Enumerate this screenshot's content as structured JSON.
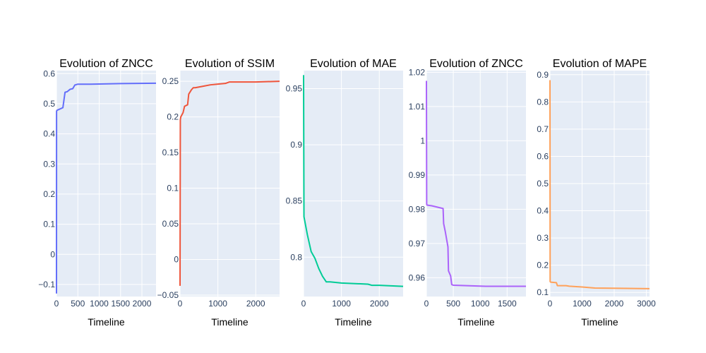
{
  "chart_data": [
    {
      "type": "line",
      "title": "Evolution of ZNCC",
      "xlabel": "Timeline",
      "ylabel": "",
      "xlim": [
        0,
        2330
      ],
      "ylim": [
        -0.14,
        0.61
      ],
      "xticks": [
        0,
        500,
        1000,
        1500,
        2000
      ],
      "xtick_labels": [
        "0",
        "500",
        "1000",
        "1500",
        "2000"
      ],
      "yticks": [
        -0.1,
        0,
        0.1,
        0.2,
        0.3,
        0.4,
        0.5,
        0.6
      ],
      "ytick_labels": [
        "−0.1",
        "0",
        "0.1",
        "0.2",
        "0.3",
        "0.4",
        "0.5",
        "0.6"
      ],
      "grid": true,
      "color": "#636efa",
      "x": [
        0,
        2,
        10,
        150,
        200,
        250,
        320,
        380,
        430,
        500,
        800,
        1500,
        2330
      ],
      "y": [
        -0.13,
        0.475,
        0.478,
        0.487,
        0.538,
        0.54,
        0.548,
        0.55,
        0.562,
        0.565,
        0.565,
        0.567,
        0.568
      ]
    },
    {
      "type": "line",
      "title": "Evolution of SSIM",
      "xlabel": "Timeline",
      "ylabel": "",
      "xlim": [
        0,
        2630
      ],
      "ylim": [
        -0.052,
        0.265
      ],
      "xticks": [
        0,
        1000,
        2000
      ],
      "xtick_labels": [
        "0",
        "1000",
        "2000"
      ],
      "yticks": [
        -0.05,
        0,
        0.05,
        0.1,
        0.15,
        0.2,
        0.25
      ],
      "ytick_labels": [
        "−0.05",
        "0",
        "0.05",
        "0.1",
        "0.15",
        "0.2",
        "0.25"
      ],
      "grid": true,
      "color": "#ef553b",
      "x": [
        0,
        8,
        20,
        80,
        120,
        200,
        230,
        300,
        350,
        400,
        600,
        800,
        1000,
        1200,
        1300,
        2000,
        2630
      ],
      "y": [
        -0.037,
        0.196,
        0.2,
        0.206,
        0.215,
        0.217,
        0.232,
        0.238,
        0.241,
        0.241,
        0.243,
        0.245,
        0.246,
        0.247,
        0.249,
        0.249,
        0.25
      ]
    },
    {
      "type": "line",
      "title": "Evolution of MAE",
      "xlabel": "Timeline",
      "ylabel": "",
      "xlim": [
        0,
        2630
      ],
      "ylim": [
        0.765,
        0.966
      ],
      "xticks": [
        0,
        1000,
        2000
      ],
      "xtick_labels": [
        "0",
        "1000",
        "2000"
      ],
      "yticks": [
        0.8,
        0.85,
        0.9,
        0.95
      ],
      "ytick_labels": [
        "0.8",
        "0.85",
        "0.9",
        "0.95"
      ],
      "grid": true,
      "color": "#00cc96",
      "x": [
        0,
        10,
        100,
        200,
        300,
        400,
        500,
        600,
        700,
        1000,
        1700,
        1800,
        2000,
        2630
      ],
      "y": [
        0.962,
        0.836,
        0.82,
        0.805,
        0.799,
        0.79,
        0.783,
        0.778,
        0.778,
        0.777,
        0.776,
        0.775,
        0.775,
        0.774
      ]
    },
    {
      "type": "line",
      "title": "Evolution of ZNCC",
      "xlabel": "Timeline",
      "ylabel": "",
      "xlim": [
        0,
        1850
      ],
      "ylim": [
        0.9545,
        1.0205
      ],
      "xticks": [
        0,
        500,
        1000,
        1500
      ],
      "xtick_labels": [
        "0",
        "500",
        "1000",
        "1500"
      ],
      "yticks": [
        0.96,
        0.97,
        0.98,
        0.99,
        1,
        1.01,
        1.02
      ],
      "ytick_labels": [
        "0.96",
        "0.97",
        "0.98",
        "0.99",
        "1",
        "1.01",
        "1.02"
      ],
      "grid": true,
      "color": "#ab63fa",
      "x": [
        0,
        5,
        10,
        100,
        310,
        320,
        350,
        400,
        410,
        450,
        470,
        500,
        1100,
        1850
      ],
      "y": [
        1.0175,
        0.9815,
        0.9812,
        0.981,
        0.9802,
        0.9758,
        0.9735,
        0.969,
        0.962,
        0.9605,
        0.958,
        0.9578,
        0.9575,
        0.9575
      ]
    },
    {
      "type": "line",
      "title": "Evolution of MAPE",
      "xlabel": "Timeline",
      "ylabel": "",
      "xlim": [
        0,
        3100
      ],
      "ylim": [
        0.085,
        0.915
      ],
      "xticks": [
        0,
        1000,
        2000,
        3000
      ],
      "xtick_labels": [
        "0",
        "1000",
        "2000",
        "3000"
      ],
      "yticks": [
        0.1,
        0.2,
        0.3,
        0.4,
        0.5,
        0.6,
        0.7,
        0.8,
        0.9
      ],
      "ytick_labels": [
        "0.1",
        "0.2",
        "0.3",
        "0.4",
        "0.5",
        "0.6",
        "0.7",
        "0.8",
        "0.9"
      ],
      "grid": true,
      "color": "#ffa15a",
      "x": [
        0,
        5,
        20,
        200,
        230,
        500,
        600,
        1000,
        1400,
        3100
      ],
      "y": [
        0.88,
        0.14,
        0.138,
        0.136,
        0.125,
        0.125,
        0.123,
        0.12,
        0.116,
        0.114
      ]
    }
  ]
}
